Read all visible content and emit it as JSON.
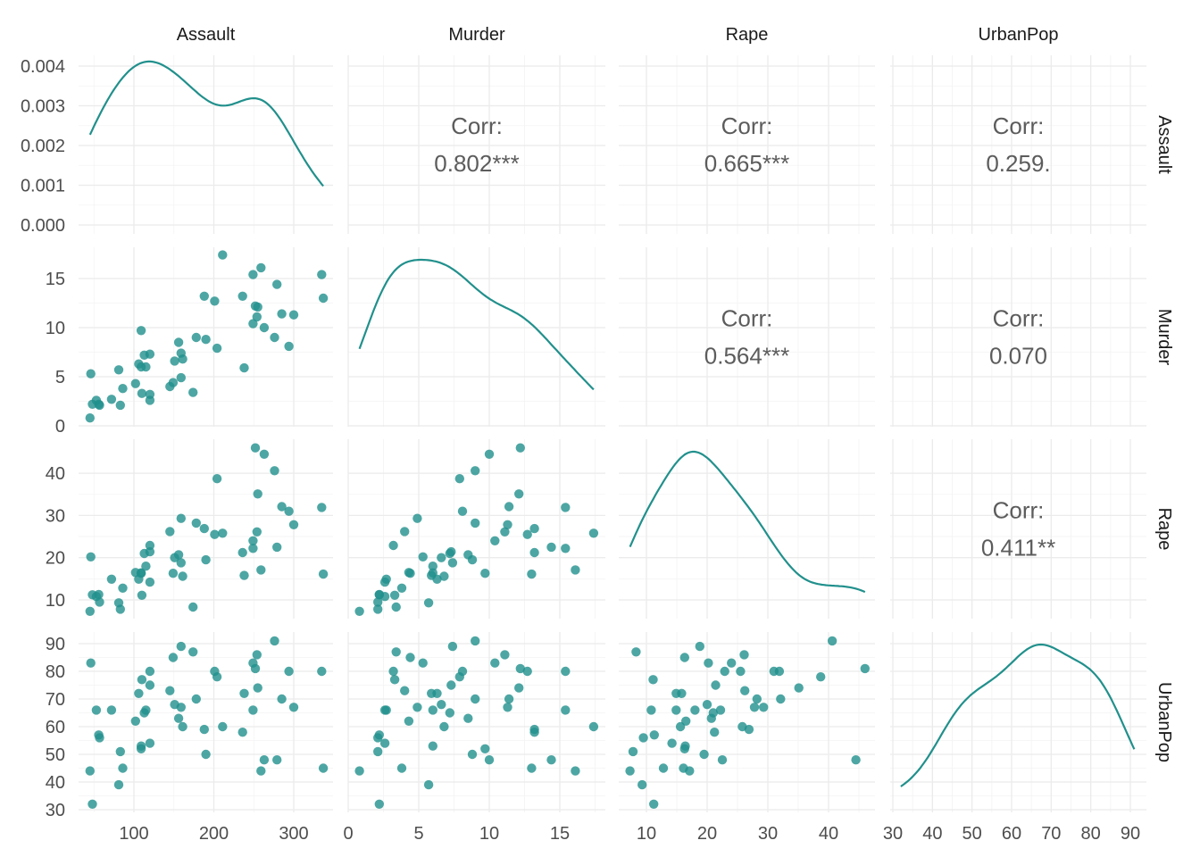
{
  "chart_data": {
    "type": "scatter-matrix",
    "title": "",
    "variables": [
      "Assault",
      "Murder",
      "Rape",
      "UrbanPop"
    ],
    "columns": [
      "Murder",
      "Assault",
      "UrbanPop",
      "Rape"
    ],
    "rows": [
      [
        13.2,
        236,
        58,
        21.2
      ],
      [
        10.0,
        263,
        48,
        44.5
      ],
      [
        8.1,
        294,
        80,
        31.0
      ],
      [
        8.8,
        190,
        50,
        19.5
      ],
      [
        9.0,
        276,
        91,
        40.6
      ],
      [
        7.9,
        204,
        78,
        38.7
      ],
      [
        3.3,
        110,
        77,
        11.1
      ],
      [
        5.9,
        238,
        72,
        15.8
      ],
      [
        15.4,
        335,
        80,
        31.9
      ],
      [
        17.4,
        211,
        60,
        25.8
      ],
      [
        5.3,
        46,
        83,
        20.2
      ],
      [
        2.6,
        120,
        54,
        14.2
      ],
      [
        10.4,
        249,
        83,
        24.0
      ],
      [
        7.2,
        113,
        65,
        21.0
      ],
      [
        2.2,
        56,
        57,
        11.3
      ],
      [
        6.0,
        115,
        66,
        18.0
      ],
      [
        9.7,
        109,
        52,
        16.3
      ],
      [
        15.4,
        249,
        66,
        22.2
      ],
      [
        2.1,
        83,
        51,
        7.8
      ],
      [
        11.3,
        300,
        67,
        27.8
      ],
      [
        4.4,
        149,
        85,
        16.3
      ],
      [
        12.1,
        255,
        74,
        35.1
      ],
      [
        2.7,
        72,
        66,
        14.9
      ],
      [
        16.1,
        259,
        44,
        17.1
      ],
      [
        9.0,
        178,
        70,
        28.2
      ],
      [
        6.0,
        109,
        53,
        16.4
      ],
      [
        4.3,
        102,
        62,
        16.5
      ],
      [
        12.2,
        252,
        81,
        46.0
      ],
      [
        2.1,
        57,
        56,
        9.5
      ],
      [
        7.4,
        159,
        89,
        18.8
      ],
      [
        11.4,
        285,
        70,
        32.1
      ],
      [
        11.1,
        254,
        86,
        26.1
      ],
      [
        13.0,
        337,
        45,
        16.1
      ],
      [
        0.8,
        45,
        44,
        7.3
      ],
      [
        7.3,
        120,
        75,
        21.4
      ],
      [
        6.6,
        151,
        68,
        20.0
      ],
      [
        4.9,
        159,
        67,
        29.3
      ],
      [
        6.3,
        106,
        72,
        14.9
      ],
      [
        3.4,
        174,
        87,
        8.3
      ],
      [
        14.4,
        279,
        48,
        22.5
      ],
      [
        3.8,
        86,
        45,
        12.8
      ],
      [
        13.2,
        188,
        59,
        26.9
      ],
      [
        12.7,
        201,
        80,
        25.5
      ],
      [
        3.2,
        120,
        80,
        22.9
      ],
      [
        2.2,
        48,
        32,
        11.2
      ],
      [
        8.5,
        156,
        63,
        20.7
      ],
      [
        4.0,
        145,
        73,
        26.2
      ],
      [
        5.7,
        81,
        39,
        9.3
      ],
      [
        2.6,
        53,
        66,
        10.8
      ],
      [
        6.8,
        161,
        60,
        15.6
      ]
    ],
    "correlations": [
      {
        "row": "Assault",
        "col": "Murder",
        "label": "Corr:",
        "value": "0.802***"
      },
      {
        "row": "Assault",
        "col": "Rape",
        "label": "Corr:",
        "value": "0.665***"
      },
      {
        "row": "Assault",
        "col": "UrbanPop",
        "label": "Corr:",
        "value": "0.259."
      },
      {
        "row": "Murder",
        "col": "Rape",
        "label": "Corr:",
        "value": "0.564***"
      },
      {
        "row": "Murder",
        "col": "UrbanPop",
        "label": "Corr:",
        "value": "0.070"
      },
      {
        "row": "Rape",
        "col": "UrbanPop",
        "label": "Corr:",
        "value": "0.411**"
      }
    ],
    "x_ticks": {
      "Assault": [
        "100",
        "200",
        "300"
      ],
      "Murder": [
        "0",
        "5",
        "10",
        "15"
      ],
      "Rape": [
        "10",
        "20",
        "30",
        "40"
      ],
      "UrbanPop": [
        "30",
        "40",
        "50",
        "60",
        "70",
        "80",
        "90"
      ]
    },
    "y_ticks": {
      "Assault": [
        "0.000",
        "0.001",
        "0.002",
        "0.003",
        "0.004"
      ],
      "Murder": [
        "0",
        "5",
        "10",
        "15"
      ],
      "Rape": [
        "10",
        "20",
        "30",
        "40"
      ],
      "UrbanPop": [
        "30",
        "40",
        "50",
        "60",
        "70",
        "80",
        "90"
      ]
    },
    "point_color": "#21908C",
    "grid": true
  }
}
